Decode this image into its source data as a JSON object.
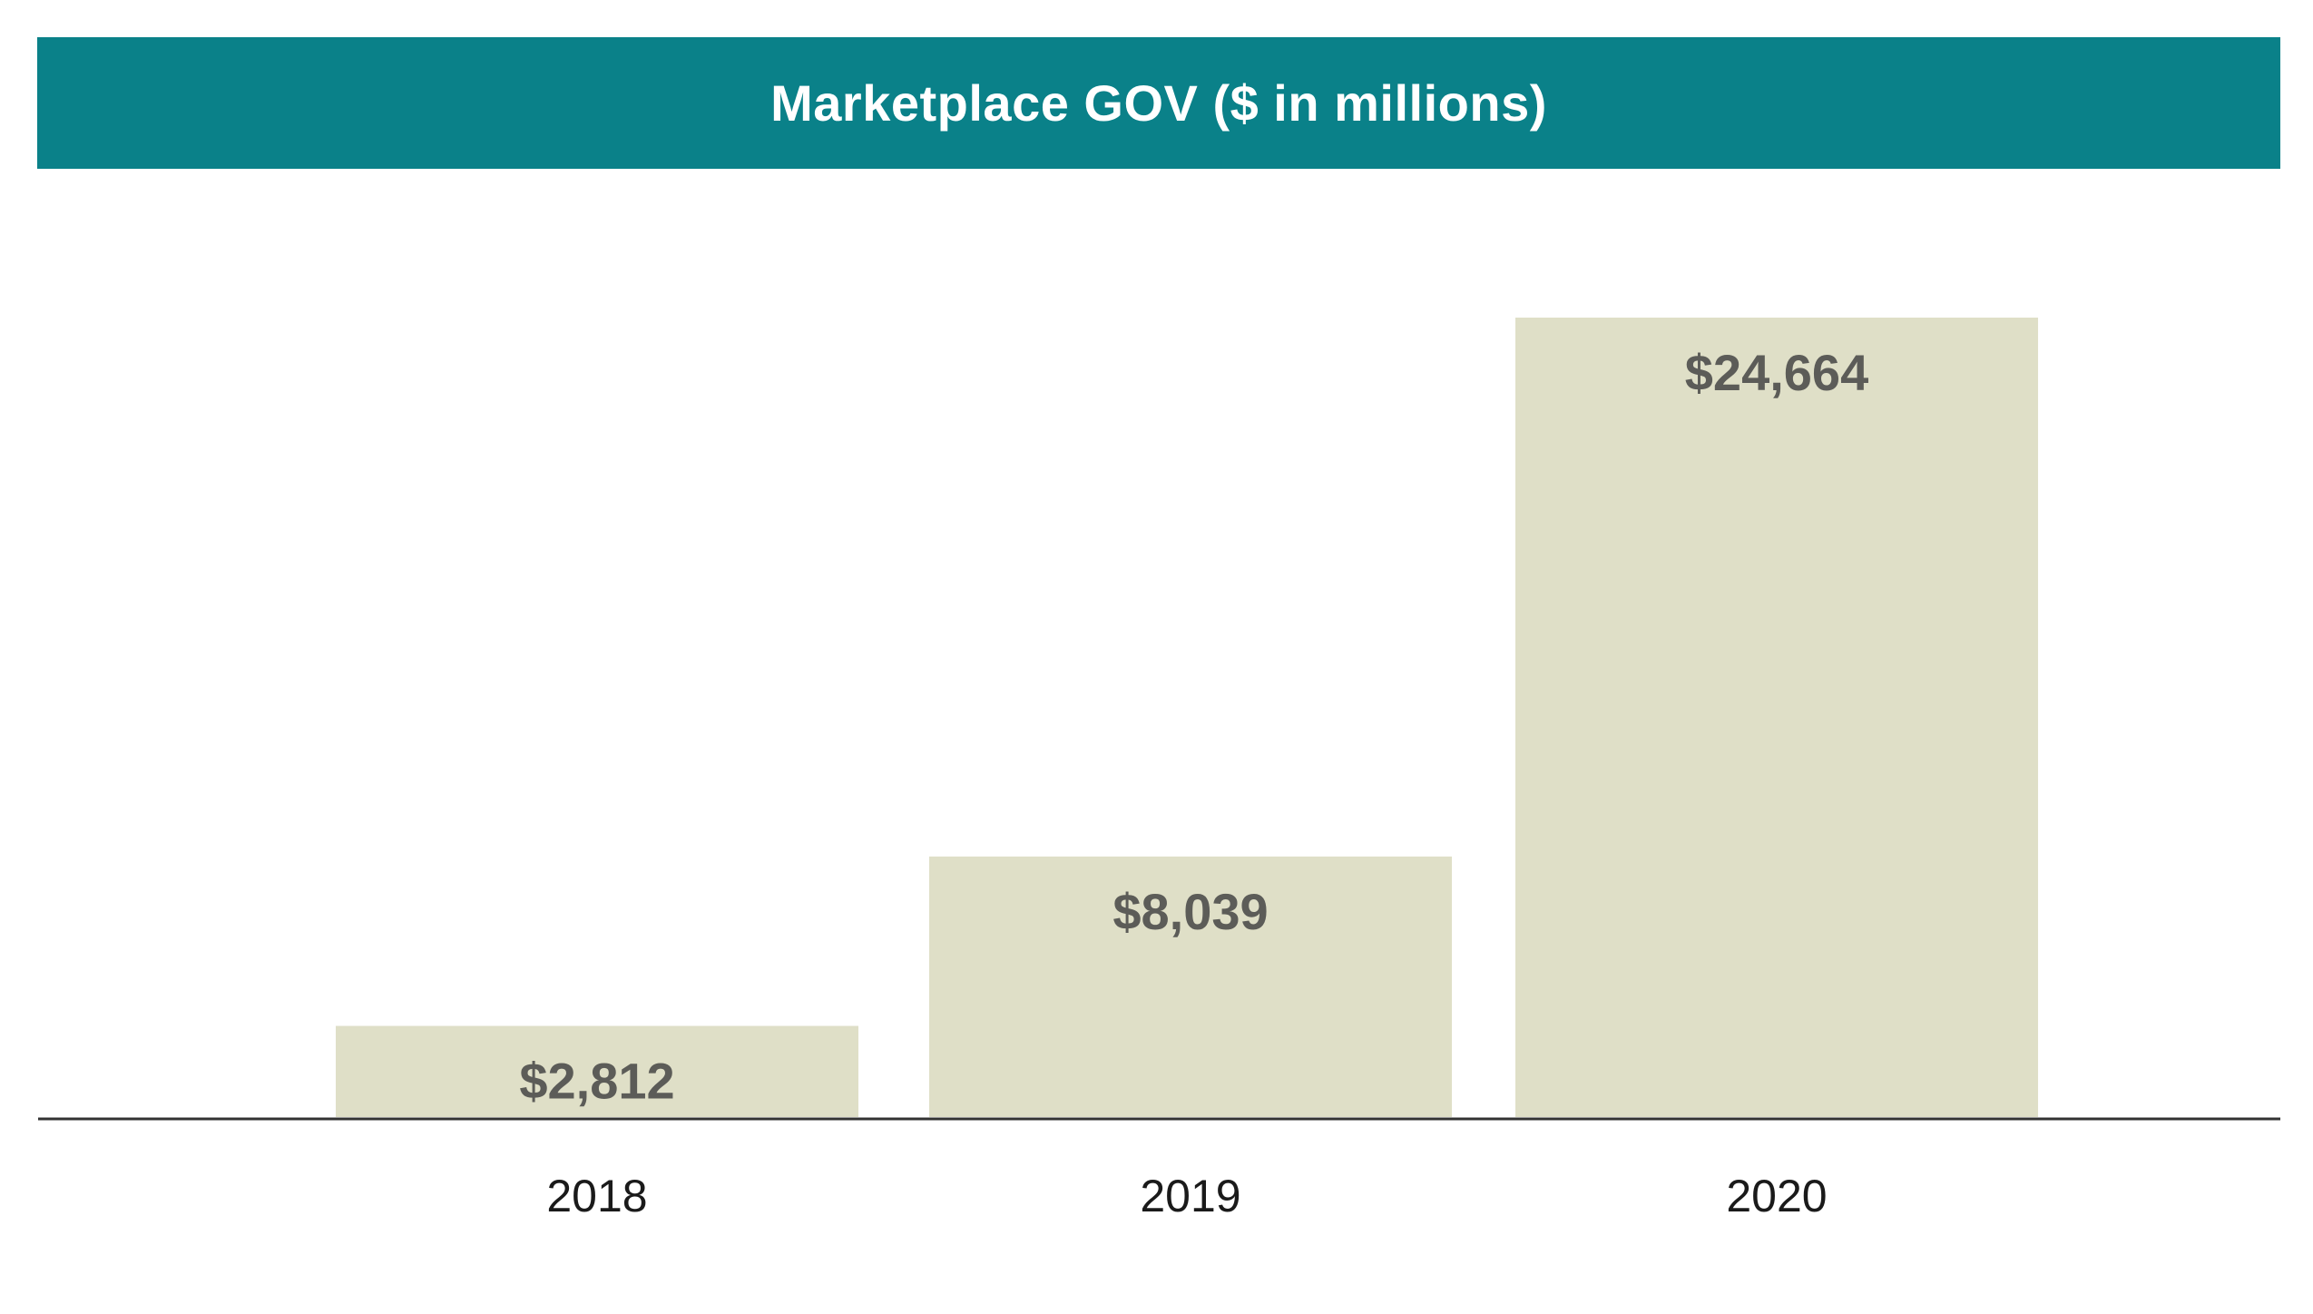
{
  "chart_data": {
    "type": "bar",
    "title": "Marketplace GOV ($ in millions)",
    "categories": [
      "2018",
      "2019",
      "2020"
    ],
    "values": [
      2812,
      8039,
      24664
    ],
    "value_labels": [
      "$2,812",
      "$8,039",
      "$24,664"
    ],
    "xlabel": "",
    "ylabel": "",
    "ylim": [
      0,
      24664
    ],
    "grid": false,
    "legend": "none"
  },
  "colors": {
    "banner": "#0a8189",
    "bar": "#dfdfc7",
    "bar_label": "#5c5c58",
    "axis": "#333333",
    "tick_label": "#1a1a1a"
  }
}
